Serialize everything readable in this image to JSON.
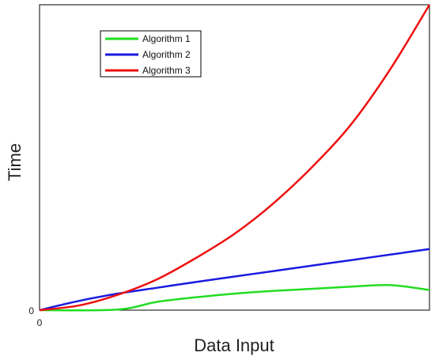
{
  "chart_data": {
    "type": "line",
    "title": "",
    "xlabel": "Data Input",
    "ylabel": "Time",
    "xlim": [
      0,
      1
    ],
    "ylim": [
      0,
      1
    ],
    "x_ticks": [
      "0"
    ],
    "y_ticks": [
      "0"
    ],
    "grid": false,
    "legend_position": "top-left",
    "series": [
      {
        "name": "Algorithm 1",
        "color": "#22dd22",
        "x": [
          0,
          0.2,
          0.3,
          0.4,
          0.5,
          0.6,
          0.7,
          0.8,
          0.9,
          1.0
        ],
        "y": [
          0,
          0.002,
          0.027,
          0.042,
          0.054,
          0.063,
          0.07,
          0.077,
          0.082,
          0.066
        ]
      },
      {
        "name": "Algorithm 2",
        "color": "#1a1adf",
        "x": [
          0,
          0.1,
          0.2,
          0.3,
          0.4,
          0.5,
          0.6,
          0.7,
          0.8,
          0.9,
          1.0
        ],
        "y": [
          0,
          0.03,
          0.054,
          0.073,
          0.092,
          0.11,
          0.128,
          0.146,
          0.164,
          0.182,
          0.2
        ]
      },
      {
        "name": "Algorithm 3",
        "color": "#ee1111",
        "x": [
          0,
          0.1,
          0.2,
          0.3,
          0.4,
          0.5,
          0.6,
          0.7,
          0.8,
          0.9,
          1.0
        ],
        "y": [
          0,
          0.015,
          0.05,
          0.1,
          0.17,
          0.25,
          0.35,
          0.47,
          0.61,
          0.79,
          1.0
        ]
      }
    ]
  }
}
